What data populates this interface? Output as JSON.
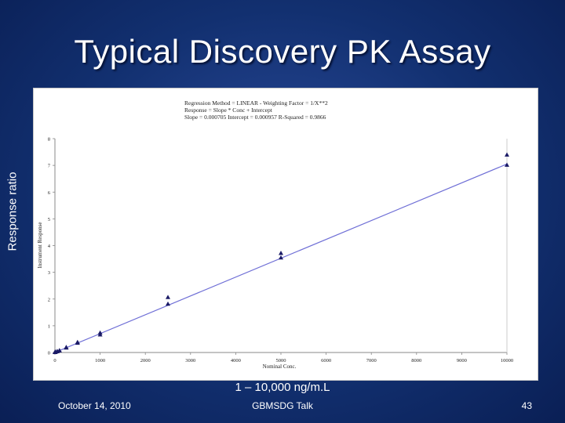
{
  "slide": {
    "title": "Typical Discovery PK Assay",
    "y_caption": "Response ratio",
    "x_caption": "1 – 10,000 ng/m.L",
    "footer_date": "October 14, 2010",
    "footer_center": "GBMSDG Talk",
    "page_number": "43"
  },
  "chart_data": {
    "type": "scatter",
    "regression_lines": [
      "Regression Method = LINEAR - Weighting Factor = 1/X**2",
      "Response = Slope * Conc + Intercept",
      "Slope = 0.000705 Intercept = 0.000957 R-Squared = 0.9866"
    ],
    "xlabel": "Nominal Conc.",
    "ylabel": "Instrument Response",
    "xlim": [
      0,
      10000
    ],
    "ylim": [
      0,
      8
    ],
    "x_ticks": [
      0,
      1000,
      2000,
      3000,
      4000,
      5000,
      6000,
      7000,
      8000,
      9000,
      10000
    ],
    "y_ticks": [
      0,
      1,
      2,
      3,
      4,
      5,
      6,
      7,
      8
    ],
    "fit": {
      "slope": 0.000705,
      "intercept": 0.000957,
      "x_range": [
        0,
        10000
      ]
    },
    "points": [
      {
        "x": 1,
        "y": 0.01
      },
      {
        "x": 1,
        "y": 0.02
      },
      {
        "x": 10,
        "y": 0.02
      },
      {
        "x": 10,
        "y": 0.03
      },
      {
        "x": 50,
        "y": 0.04
      },
      {
        "x": 50,
        "y": 0.05
      },
      {
        "x": 100,
        "y": 0.07
      },
      {
        "x": 100,
        "y": 0.08
      },
      {
        "x": 250,
        "y": 0.18
      },
      {
        "x": 250,
        "y": 0.2
      },
      {
        "x": 500,
        "y": 0.36
      },
      {
        "x": 500,
        "y": 0.39
      },
      {
        "x": 1000,
        "y": 0.67
      },
      {
        "x": 1000,
        "y": 0.74
      },
      {
        "x": 2500,
        "y": 1.82
      },
      {
        "x": 2500,
        "y": 2.07
      },
      {
        "x": 5000,
        "y": 3.55
      },
      {
        "x": 5000,
        "y": 3.72
      },
      {
        "x": 10000,
        "y": 7.02
      },
      {
        "x": 10000,
        "y": 7.4
      }
    ],
    "colors": {
      "line": "#6f6fd6",
      "marker": "#1a1a66",
      "axis": "#888888"
    }
  }
}
